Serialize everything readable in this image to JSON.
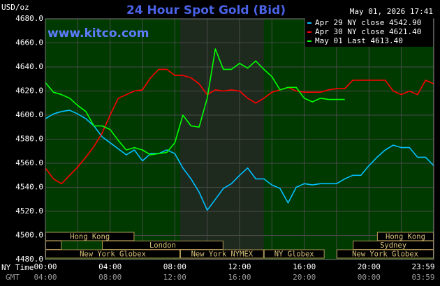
{
  "chart_data": {
    "type": "line",
    "title": "24 Hour Spot Gold (Bid)",
    "y_label": "USD/oz",
    "timestamp": "May 01, 2026 17:41",
    "watermark": "www.kitco.com",
    "x_label": "NY Time",
    "x2_label": "GMT",
    "xlim": [
      0,
      24
    ],
    "ylim": [
      4480,
      4680
    ],
    "xticks": [
      {
        "value": 0,
        "label": "00:00"
      },
      {
        "value": 4,
        "label": "04:00"
      },
      {
        "value": 8,
        "label": "08:00"
      },
      {
        "value": 12,
        "label": "12:00"
      },
      {
        "value": 16,
        "label": "16:00"
      },
      {
        "value": 20,
        "label": "20:00"
      },
      {
        "value": 23.983,
        "label": "23:59"
      }
    ],
    "x2tick_labels": [
      "04:00",
      "08:00",
      "12:00",
      "16:00",
      "20:00",
      "00:00",
      "03:59"
    ],
    "xminor": [
      2,
      6,
      10,
      14,
      18,
      22
    ],
    "yticks": [
      {
        "value": 4480,
        "label": "4480.0"
      },
      {
        "value": 4500,
        "label": "4500.0"
      },
      {
        "value": 4520,
        "label": "4520.0"
      },
      {
        "value": 4540,
        "label": "4540.0"
      },
      {
        "value": 4560,
        "label": "4560.0"
      },
      {
        "value": 4580,
        "label": "4580.0"
      },
      {
        "value": 4600,
        "label": "4600.0"
      },
      {
        "value": 4620,
        "label": "4620.0"
      },
      {
        "value": 4640,
        "label": "4640.0"
      },
      {
        "value": 4660,
        "label": "4660.0"
      },
      {
        "value": 4680,
        "label": "4680.0"
      }
    ],
    "grid": true,
    "legend": "upper right",
    "x": [
      0,
      0.5,
      1,
      1.5,
      2,
      2.5,
      3,
      3.5,
      4,
      4.5,
      5,
      5.5,
      6,
      6.5,
      7,
      7.5,
      8,
      8.5,
      9,
      9.5,
      10,
      10.5,
      11,
      11.5,
      12,
      12.5,
      13,
      13.5,
      14,
      14.5,
      15,
      15.5,
      16,
      16.5,
      17,
      17.5,
      18,
      18.5,
      19,
      19.5,
      20,
      20.5,
      21,
      21.5,
      22,
      22.5,
      23,
      23.5,
      24
    ],
    "series": [
      {
        "name": "Apr 29 NY close 4542.90",
        "color": "#00bfff",
        "values": [
          4597,
          4601,
          4603,
          4604,
          4601,
          4597,
          4591,
          4582,
          4577,
          4572,
          4567,
          4571,
          4562,
          4568,
          4568,
          4571,
          4568,
          4556,
          4547,
          4536,
          4521,
          4530,
          4539,
          4543,
          4550,
          4556,
          4547,
          4547,
          4542,
          4539,
          4527,
          4540,
          4543,
          4542,
          4543,
          4543,
          4543,
          4547,
          4550,
          4550,
          4558,
          4565,
          4571,
          4575,
          4573,
          4573,
          4565,
          4565,
          4558
        ]
      },
      {
        "name": "Apr 30 NY close 4621.40",
        "color": "#ff0000",
        "values": [
          4556,
          4547,
          4543,
          4550,
          4557,
          4565,
          4574,
          4585,
          4600,
          4614,
          4617,
          4620,
          4621,
          4631,
          4638,
          4638,
          4633,
          4633,
          4631,
          4626,
          4617,
          4621,
          4620,
          4621,
          4620,
          4614,
          4610,
          4614,
          4619,
          4621,
          4623,
          4620,
          4619,
          4619,
          4619,
          4621,
          4622,
          4622,
          4629,
          4629,
          4629,
          4629,
          4629,
          4620,
          4617,
          4620,
          4617,
          4629,
          4626
        ]
      },
      {
        "name": "May 01 Last 4613.40",
        "color": "#00ff00",
        "values": [
          4627,
          4619,
          4617,
          4614,
          4608,
          4603,
          4591,
          4591,
          4588,
          4579,
          4571,
          4573,
          4571,
          4567,
          4568,
          4569,
          4577,
          4600,
          4591,
          4590,
          4614,
          4655,
          4638,
          4638,
          4643,
          4639,
          4645,
          4638,
          4632,
          4621,
          4623,
          4623,
          4614,
          4611,
          4614,
          4613,
          4613,
          4613,
          null,
          null,
          null,
          null,
          null,
          null,
          null,
          null,
          null,
          null,
          null
        ]
      }
    ],
    "session_rows": [
      [
        {
          "label": "Hong Kong",
          "start": 0,
          "end": 5.5
        },
        {
          "label": "Hong Kong",
          "start": 20.5,
          "end": 24
        }
      ],
      [
        {
          "label": null,
          "start": 0,
          "end": 1
        },
        {
          "label": "London",
          "start": 3.5,
          "end": 11
        },
        {
          "label": "Sydney",
          "start": 19,
          "end": 24
        }
      ],
      [
        {
          "label": "New York Globex",
          "start": 0,
          "end": 8.33
        },
        {
          "label": "New York NYMEX",
          "start": 8.33,
          "end": 13.5,
          "shaded": true
        },
        {
          "label": "NY Globex",
          "start": 13.5,
          "end": 17.25
        },
        {
          "label": "New York Globex",
          "start": 18,
          "end": 24
        }
      ]
    ]
  }
}
